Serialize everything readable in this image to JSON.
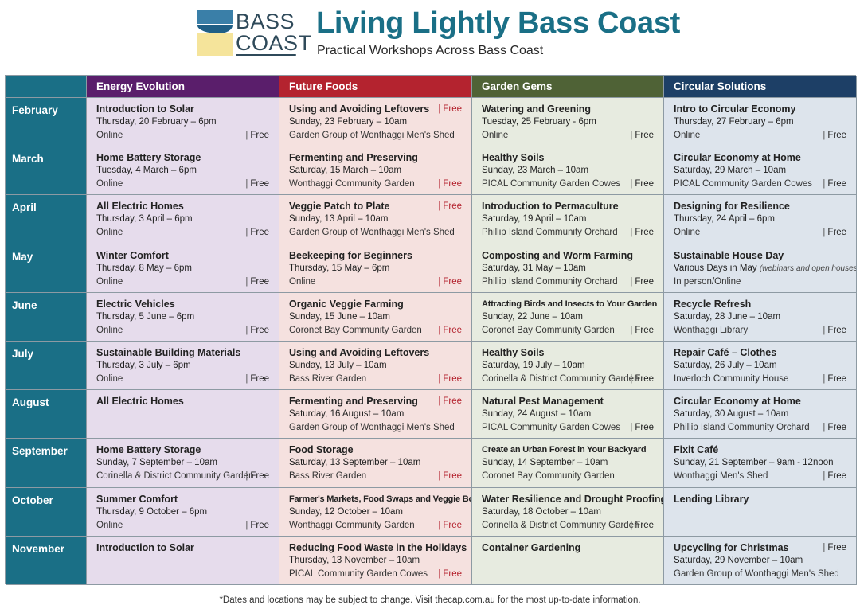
{
  "header": {
    "logo_line1": "BASS",
    "logo_line2": "COAST",
    "title": "Living Lightly Bass Coast",
    "subtitle": "Practical Workshops Across Bass Coast"
  },
  "columns": [
    "Energy Evolution",
    "Future Foods",
    "Garden Gems",
    "Circular Solutions"
  ],
  "colors": {
    "teal": "#1a6f86",
    "energy": "#5a1e6b",
    "food": "#b4232f",
    "garden": "#4f6236",
    "circular": "#1d3f66"
  },
  "free_label": "Free",
  "rows": [
    {
      "month": "February",
      "cells": [
        {
          "title": "Introduction to Solar",
          "date": "Thursday, 20 February – 6pm",
          "loc": "Online",
          "free": "bottom"
        },
        {
          "title": "Using and Avoiding Leftovers",
          "date": "Sunday, 23 February – 10am",
          "loc": "Garden Group of Wonthaggi Men's Shed",
          "free": "top"
        },
        {
          "title": "Watering and Greening",
          "date": "Tuesday, 25 February - 6pm",
          "loc": "Online",
          "free": "bottom"
        },
        {
          "title": "Intro to Circular Economy",
          "date": "Thursday, 27 February – 6pm",
          "loc": "Online",
          "free": "bottom"
        }
      ]
    },
    {
      "month": "March",
      "cells": [
        {
          "title": "Home Battery Storage",
          "date": "Tuesday, 4 March – 6pm",
          "loc": "Online",
          "free": "bottom"
        },
        {
          "title": "Fermenting and Preserving",
          "date": "Saturday, 15 March – 10am",
          "loc": "Wonthaggi Community Garden",
          "free": "bottom-red"
        },
        {
          "title": "Healthy Soils",
          "date": "Sunday, 23 March – 10am",
          "loc": "PICAL Community Garden Cowes",
          "free": "bottom"
        },
        {
          "title": "Circular Economy at Home",
          "date": "Saturday, 29 March – 10am",
          "loc": "PICAL Community Garden Cowes",
          "free": "bottom"
        }
      ]
    },
    {
      "month": "April",
      "cells": [
        {
          "title": "All Electric Homes",
          "date": "Thursday, 3 April – 6pm",
          "loc": "Online",
          "free": "bottom"
        },
        {
          "title": "Veggie Patch to Plate",
          "date": "Sunday, 13 April – 10am",
          "loc": "Garden Group of Wonthaggi Men's Shed",
          "free": "top"
        },
        {
          "title": "Introduction to Permaculture",
          "date": "Saturday, 19 April – 10am",
          "loc": "Phillip Island Community Orchard",
          "free": "bottom"
        },
        {
          "title": "Designing for Resilience",
          "date": "Thursday, 24 April – 6pm",
          "loc": "Online",
          "free": "bottom"
        }
      ]
    },
    {
      "month": "May",
      "cells": [
        {
          "title": "Winter Comfort",
          "date": "Thursday, 8 May – 6pm",
          "loc": "Online",
          "free": "bottom"
        },
        {
          "title": "Beekeeping for Beginners",
          "date": "Thursday, 15 May – 6pm",
          "loc": "Online",
          "free": "bottom-red"
        },
        {
          "title": "Composting and Worm Farming",
          "date": "Saturday, 31 May – 10am",
          "loc": "Phillip Island Community Orchard",
          "free": "bottom"
        },
        {
          "title": "Sustainable House Day",
          "date": "Various Days in May",
          "note": "(webinars and open houses)",
          "loc": "In person/Online",
          "free": "none"
        }
      ]
    },
    {
      "month": "June",
      "cells": [
        {
          "title": "Electric Vehicles",
          "date": "Thursday, 5 June – 6pm",
          "loc": "Online",
          "free": "bottom"
        },
        {
          "title": "Organic Veggie Farming",
          "date": "Sunday, 15 June – 10am",
          "loc": "Coronet Bay Community Garden",
          "free": "bottom-red"
        },
        {
          "title": "Attracting Birds and Insects to Your Garden",
          "small": true,
          "date": "Sunday, 22 June – 10am",
          "loc": "Coronet Bay Community Garden",
          "free": "bottom"
        },
        {
          "title": "Recycle Refresh",
          "date": "Saturday, 28 June – 10am",
          "loc": "Wonthaggi Library",
          "free": "bottom"
        }
      ]
    },
    {
      "month": "July",
      "cells": [
        {
          "title": "Sustainable Building Materials",
          "date": "Thursday, 3 July – 6pm",
          "loc": "Online",
          "free": "bottom"
        },
        {
          "title": "Using and Avoiding Leftovers",
          "date": "Sunday, 13 July – 10am",
          "loc": "Bass River Garden",
          "free": "bottom-red"
        },
        {
          "title": "Healthy Soils",
          "date": "Saturday, 19 July – 10am",
          "loc": "Corinella & District Community Garden",
          "free": "bottom"
        },
        {
          "title": "Repair Café – Clothes",
          "date": "Saturday, 26 July – 10am",
          "loc": "Inverloch Community House",
          "free": "bottom"
        }
      ]
    },
    {
      "month": "August",
      "cells": [
        {
          "title": "All Electric Homes",
          "date": "",
          "loc": "",
          "free": "none"
        },
        {
          "title": "Fermenting and Preserving",
          "date": "Saturday, 16 August – 10am",
          "loc": "Garden Group of Wonthaggi Men's Shed",
          "free": "top"
        },
        {
          "title": "Natural Pest Management",
          "date": "Sunday, 24 August – 10am",
          "loc": "PICAL Community Garden Cowes",
          "free": "bottom"
        },
        {
          "title": "Circular Economy at Home",
          "date": "Saturday, 30 August – 10am",
          "loc": "Phillip Island Community Orchard",
          "free": "bottom"
        }
      ]
    },
    {
      "month": "September",
      "cells": [
        {
          "title": "Home Battery Storage",
          "date": "Sunday, 7 September – 10am",
          "loc": "Corinella & District Community Garden",
          "free": "bottom"
        },
        {
          "title": "Food Storage",
          "date": "Saturday, 13 September – 10am",
          "loc": "Bass River Garden",
          "free": "bottom-red"
        },
        {
          "title": "Create an Urban Forest in Your Backyard",
          "small": true,
          "date": "Sunday, 14 September – 10am",
          "loc": "Coronet Bay Community Garden",
          "free": "none"
        },
        {
          "title": "Fixit Café",
          "date": "Sunday, 21 September – 9am - 12noon",
          "loc": "Wonthaggi Men's Shed",
          "free": "bottom"
        }
      ]
    },
    {
      "month": "October",
      "cells": [
        {
          "title": "Summer Comfort",
          "date": "Thursday, 9 October – 6pm",
          "loc": "Online",
          "free": "bottom"
        },
        {
          "title": "Farmer's Markets, Food Swaps and Veggie Boxes",
          "small": true,
          "date": "Sunday, 12 October – 10am",
          "loc": "Wonthaggi Community Garden",
          "free": "bottom-red"
        },
        {
          "title": "Water Resilience and Drought Proofing",
          "date": "Saturday, 18 October – 10am",
          "loc": "Corinella & District Community Garden",
          "free": "bottom"
        },
        {
          "title": "Lending Library",
          "date": "",
          "loc": "",
          "free": "none"
        }
      ]
    },
    {
      "month": "November",
      "cells": [
        {
          "title": "Introduction to Solar",
          "date": "",
          "loc": "",
          "free": "none"
        },
        {
          "title": "Reducing Food Waste in the Holidays",
          "date": "Thursday, 13 November – 10am",
          "loc": "PICAL Community Garden Cowes",
          "free": "bottom-red"
        },
        {
          "title": "Container Gardening",
          "date": "",
          "loc": "",
          "free": "none"
        },
        {
          "title": "Upcycling for Christmas",
          "date": "Saturday, 29 November – 10am",
          "loc": "Garden Group of Wonthaggi Men's Shed",
          "free": "top-plain"
        }
      ]
    }
  ],
  "footnote": "*Dates and locations may be subject to change. Visit thecap.com.au for the most up-to-date information."
}
